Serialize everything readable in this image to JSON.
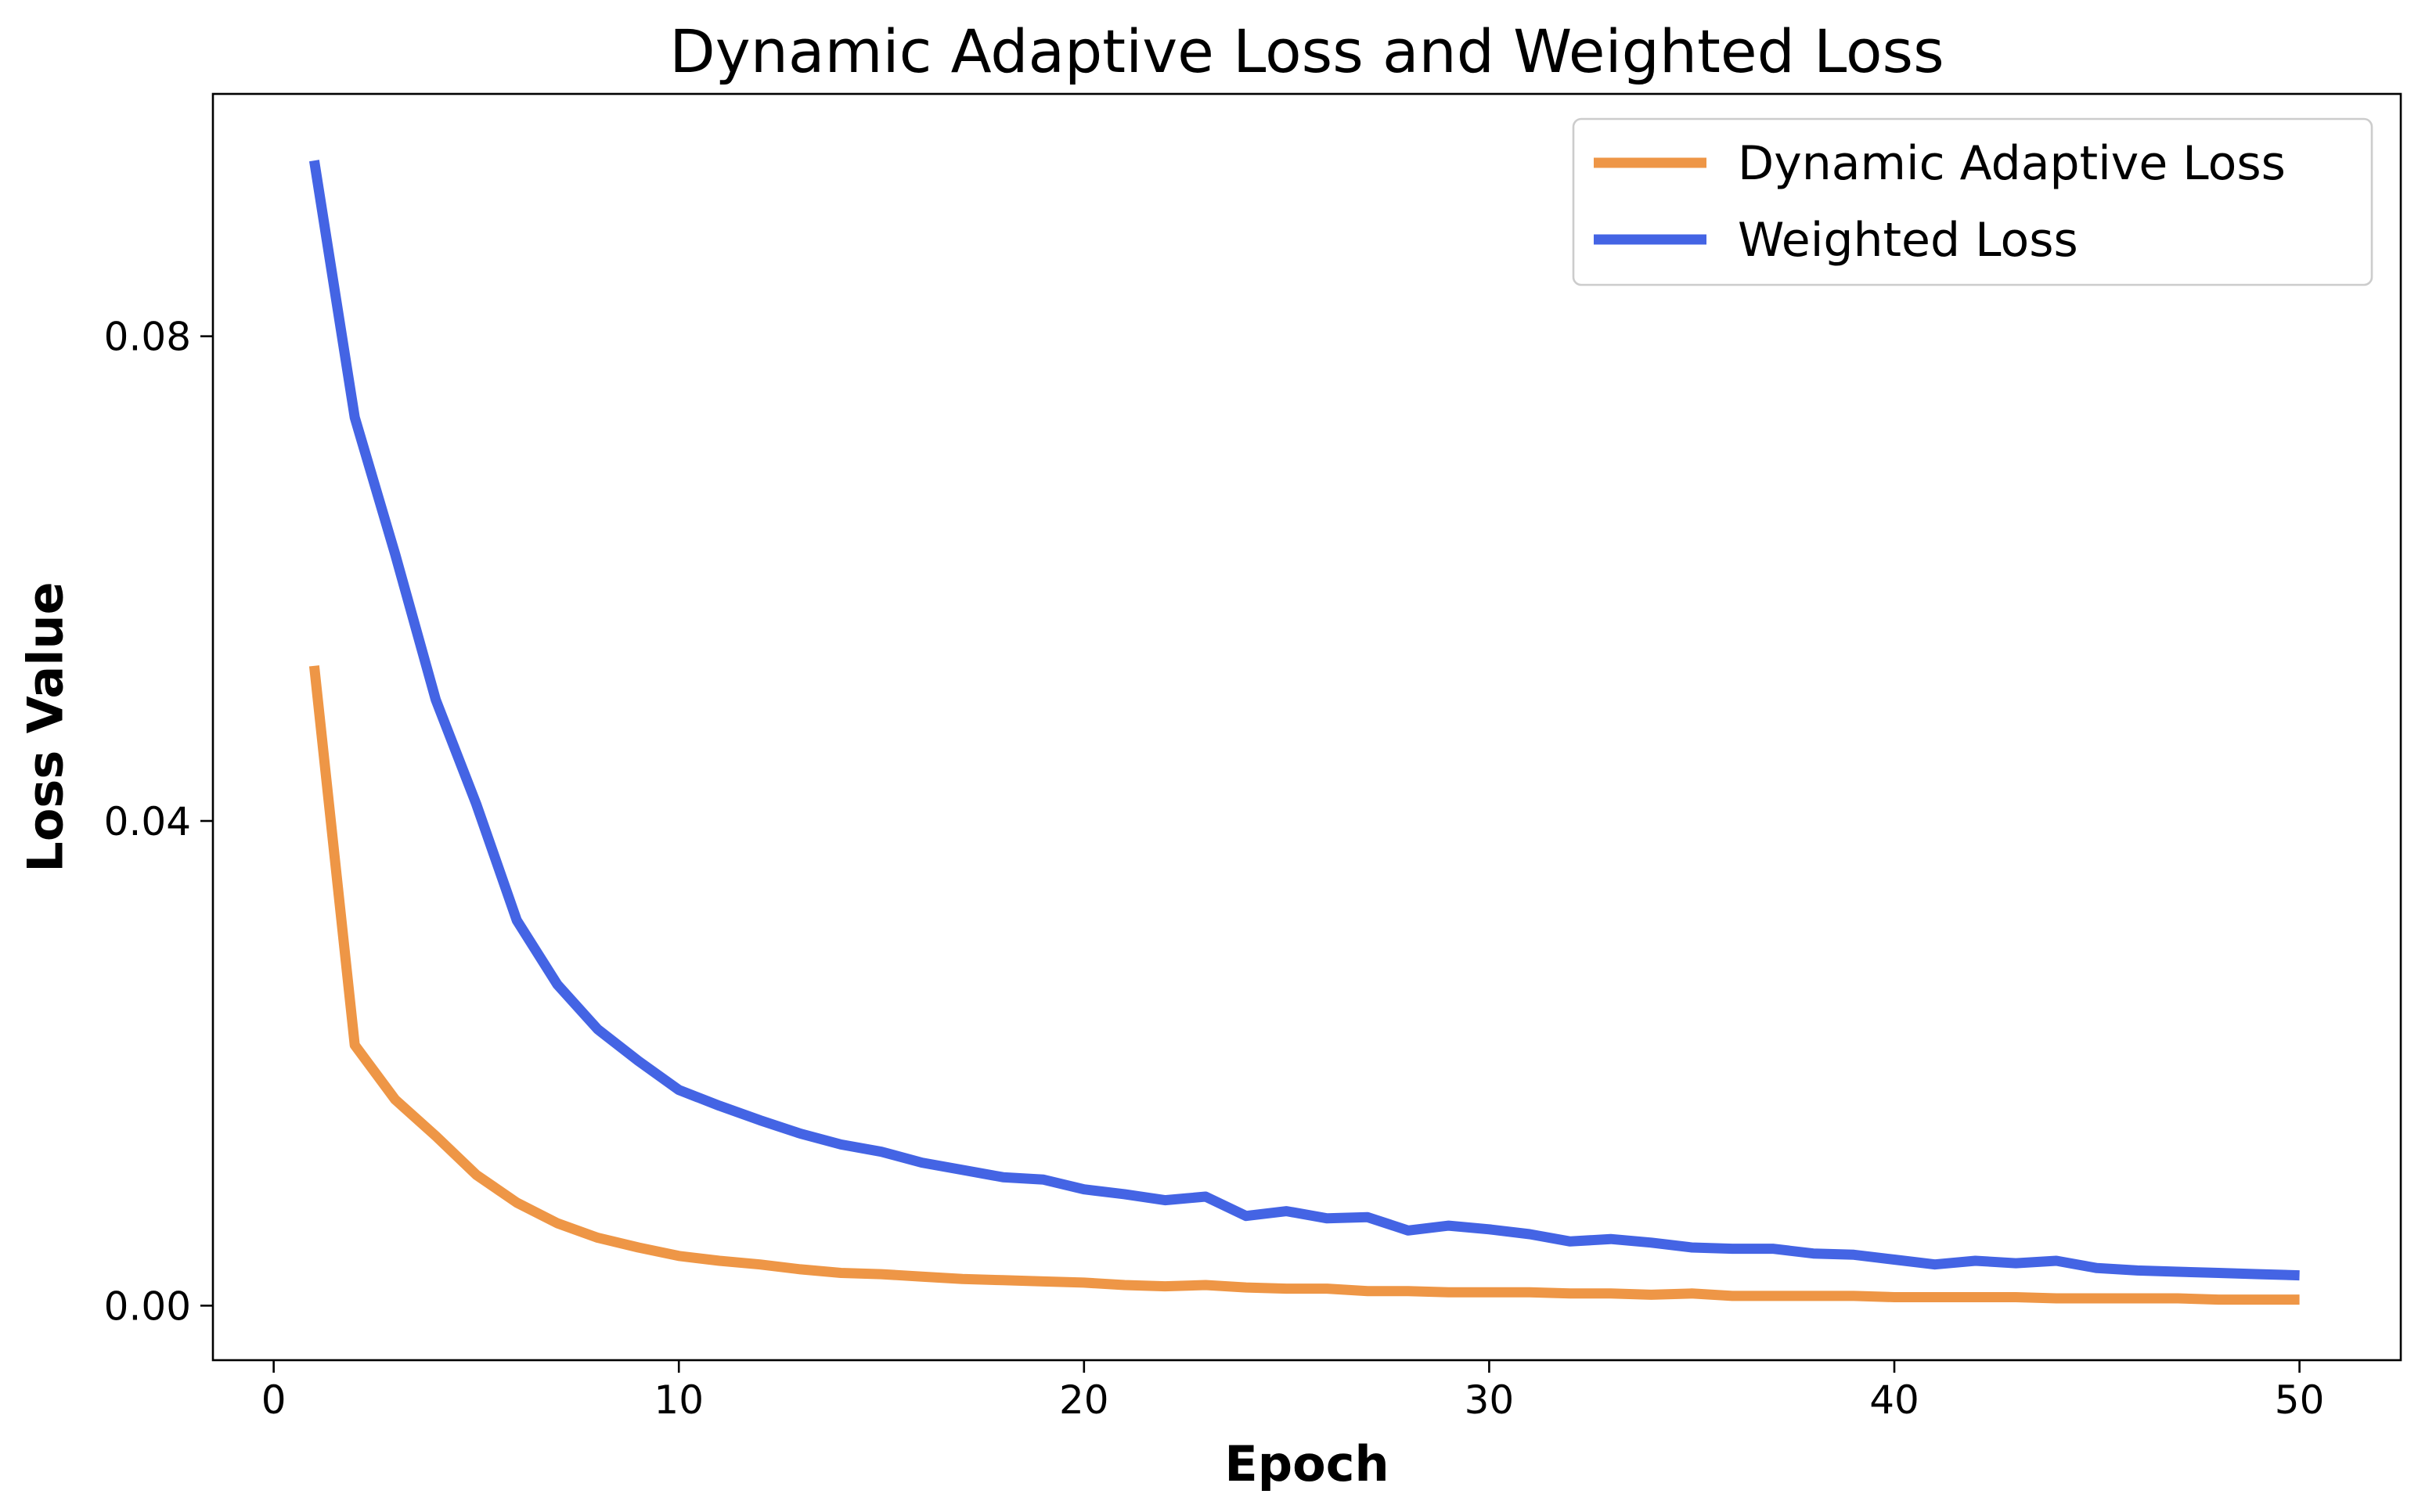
{
  "chart_data": {
    "type": "line",
    "title": "Dynamic Adaptive Loss and Weighted Loss",
    "xlabel": "Epoch",
    "ylabel": "Loss Value",
    "xlim": [
      -1.5,
      52.5
    ],
    "ylim": [
      -0.0045,
      0.1
    ],
    "xticks": [
      0,
      10,
      20,
      30,
      40,
      50
    ],
    "xtick_labels": [
      "0",
      "10",
      "20",
      "30",
      "40",
      "50"
    ],
    "yticks": [
      0.0,
      0.04,
      0.08
    ],
    "ytick_labels": [
      "0.00",
      "0.04",
      "0.08"
    ],
    "grid": false,
    "legend_position": "top-right",
    "x": [
      1,
      2,
      3,
      4,
      5,
      6,
      7,
      8,
      9,
      10,
      11,
      12,
      13,
      14,
      15,
      16,
      17,
      18,
      19,
      20,
      21,
      22,
      23,
      24,
      25,
      26,
      27,
      28,
      29,
      30,
      31,
      32,
      33,
      34,
      35,
      36,
      37,
      38,
      39,
      40,
      41,
      42,
      43,
      44,
      45,
      46,
      47,
      48,
      49,
      50
    ],
    "series": [
      {
        "name": "Dynamic Adaptive Loss",
        "color": "#EE9646",
        "values": [
          0.0528,
          0.0215,
          0.017,
          0.014,
          0.0108,
          0.0085,
          0.0068,
          0.0056,
          0.0048,
          0.0041,
          0.0037,
          0.0034,
          0.003,
          0.0027,
          0.0026,
          0.0024,
          0.0022,
          0.0021,
          0.002,
          0.0019,
          0.0017,
          0.0016,
          0.0017,
          0.0015,
          0.0014,
          0.0014,
          0.0012,
          0.0012,
          0.0011,
          0.0011,
          0.0011,
          0.001,
          0.001,
          0.0009,
          0.001,
          0.0008,
          0.0008,
          0.0008,
          0.0008,
          0.0007,
          0.0007,
          0.0007,
          0.0007,
          0.0006,
          0.0006,
          0.0006,
          0.0006,
          0.0005,
          0.0005,
          0.0005
        ]
      },
      {
        "name": "Weighted Loss",
        "color": "#4464E4",
        "values": [
          0.0945,
          0.0733,
          0.062,
          0.05,
          0.0414,
          0.0318,
          0.0265,
          0.0228,
          0.0202,
          0.0178,
          0.0165,
          0.0153,
          0.0142,
          0.0133,
          0.0127,
          0.0118,
          0.0112,
          0.0106,
          0.0104,
          0.0096,
          0.0092,
          0.0087,
          0.009,
          0.0074,
          0.0078,
          0.0072,
          0.0073,
          0.0062,
          0.0066,
          0.0063,
          0.0059,
          0.0053,
          0.0055,
          0.0052,
          0.0048,
          0.0047,
          0.0047,
          0.0043,
          0.0042,
          0.0038,
          0.0034,
          0.0037,
          0.0035,
          0.0037,
          0.0031,
          0.0029,
          0.0028,
          0.0027,
          0.0026,
          0.0025
        ]
      }
    ]
  }
}
